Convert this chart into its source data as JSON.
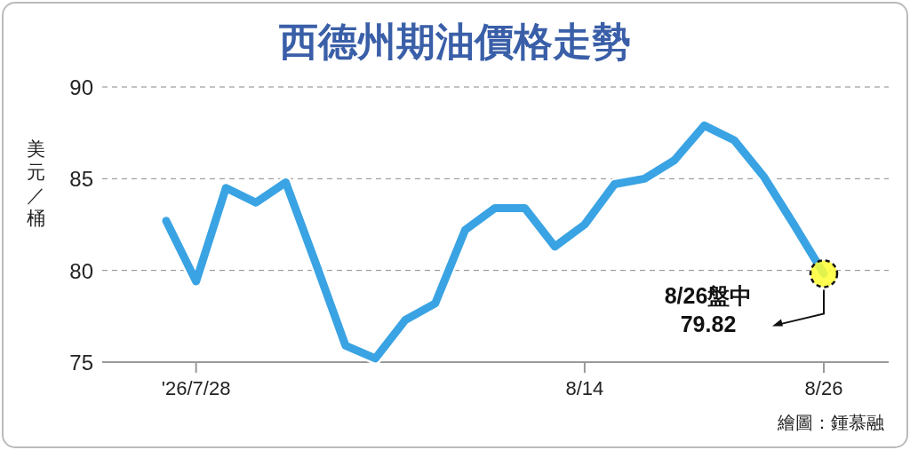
{
  "chart_data": {
    "type": "line",
    "title": "西德州期油價格走勢",
    "ylabel": "美元／桶",
    "categories": [
      null,
      "'26/7/28",
      null,
      null,
      null,
      null,
      null,
      null,
      null,
      null,
      null,
      null,
      null,
      null,
      "8/14",
      null,
      null,
      null,
      null,
      null,
      null,
      null,
      "8/26"
    ],
    "series": [
      {
        "color": "#3aa3e3",
        "values": [
          82.7,
          79.4,
          84.5,
          83.7,
          84.8,
          80.4,
          75.9,
          75.2,
          77.3,
          78.2,
          82.2,
          83.4,
          83.4,
          81.3,
          82.5,
          84.7,
          85.0,
          86.0,
          87.9,
          87.1,
          85.1,
          82.5,
          79.82
        ]
      }
    ],
    "ylim": [
      75,
      90
    ],
    "yticks": [
      75,
      80,
      85,
      90
    ],
    "grid": "y",
    "marker": "none",
    "line_style": "solid",
    "annotations": [
      "8/26盤中\n79.82",
      "繪圖：鍾慕融"
    ]
  }
}
